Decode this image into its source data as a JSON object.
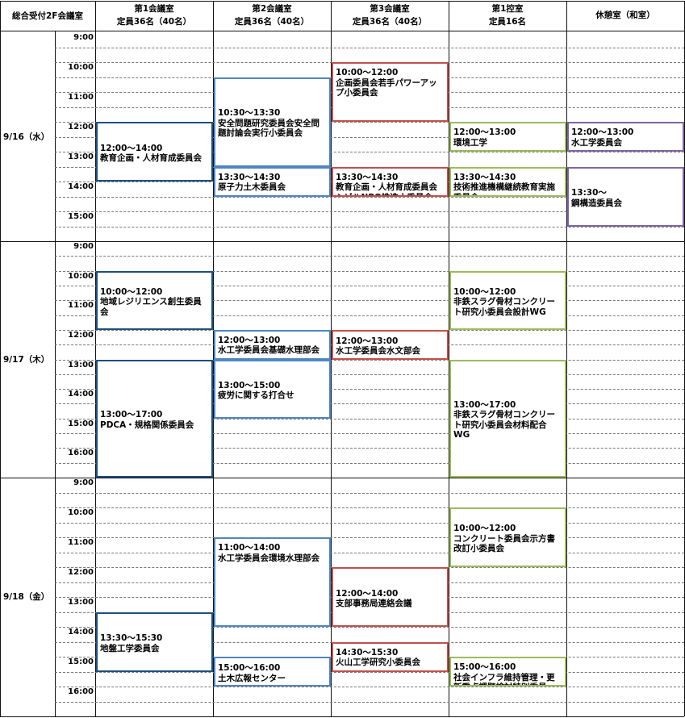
{
  "corner_label": "総合受付2F会議室",
  "rooms": [
    {
      "name": "第1会議室",
      "capacity": "定員36名（40名）"
    },
    {
      "name": "第2会議室",
      "capacity": "定員36名（40名）"
    },
    {
      "name": "第3会議室",
      "capacity": "定員36名（40名）"
    },
    {
      "name": "第1控室",
      "capacity": "定員16名"
    },
    {
      "name": "休憩室（和室）",
      "capacity": ""
    }
  ],
  "days": [
    {
      "label": "9/16（水）",
      "start_hour": 9,
      "hours": [
        "9:00",
        "10:00",
        "11:00",
        "12:00",
        "13:00",
        "14:00",
        "15:00"
      ],
      "events": [
        {
          "room": 0,
          "start": 12,
          "end": 14,
          "time": "12:00〜14:00",
          "title": "教育企画・人材育成委員会",
          "color": "#1f4e7a",
          "align": "center"
        },
        {
          "room": 1,
          "start": 10.5,
          "end": 13.5,
          "time": "10:30〜13:30",
          "title": "安全問題研究委員会安全問題討論会実行小委員会",
          "color": "#4f86c0",
          "align": "center"
        },
        {
          "room": 1,
          "start": 13.5,
          "end": 14.5,
          "time": "13:30〜14:30",
          "title": "原子力土木委員会",
          "color": "#4f86c0",
          "align": "top"
        },
        {
          "room": 2,
          "start": 10,
          "end": 12,
          "time": "10:00〜12:00",
          "title": "企画委員会若手パワーアップ小委員会",
          "color": "#c0504d",
          "align": "top"
        },
        {
          "room": 2,
          "start": 13.5,
          "end": 14.5,
          "time": "13:30〜14:30",
          "title": "教育企画・人材育成委員会シビルNPO推進小委員会",
          "color": "#c0504d",
          "align": "top"
        },
        {
          "room": 3,
          "start": 12,
          "end": 13,
          "time": "12:00〜13:00",
          "title": "環境工学",
          "color": "#9bbb59",
          "align": "top"
        },
        {
          "room": 3,
          "start": 13.5,
          "end": 14.5,
          "time": "13:30〜14:30",
          "title": "技術推進機構継続教育実施委員会",
          "color": "#9bbb59",
          "align": "top"
        },
        {
          "room": 4,
          "start": 12,
          "end": 13,
          "time": "12:00〜13:00",
          "title": "水工学委員会",
          "color": "#8064a2",
          "align": "top"
        },
        {
          "room": 4,
          "start": 13.5,
          "end": 15.5,
          "time": "13:30〜",
          "title": "鋼構造委員会",
          "color": "#8064a2",
          "align": "center"
        }
      ]
    },
    {
      "label": "9/17（木）",
      "start_hour": 9,
      "hours": [
        "9:00",
        "10:00",
        "11:00",
        "12:00",
        "13:00",
        "14:00",
        "15:00",
        "16:00"
      ],
      "events": [
        {
          "room": 0,
          "start": 10,
          "end": 12,
          "time": "10:00〜12:00",
          "title": "地域レジリエンス創生委員会",
          "color": "#1f4e7a",
          "align": "center"
        },
        {
          "room": 0,
          "start": 13,
          "end": 17,
          "time": "13:00〜17:00",
          "title": "PDCA・規格関係委員会",
          "color": "#1f4e7a",
          "align": "center"
        },
        {
          "room": 1,
          "start": 12,
          "end": 13,
          "time": "12:00〜13:00",
          "title": "水工学委員会基礎水理部会",
          "color": "#4f86c0",
          "align": "top"
        },
        {
          "room": 1,
          "start": 13,
          "end": 15,
          "time": "13:00〜15:00",
          "title": "疲労に関する打合せ",
          "color": "#4f86c0",
          "align": "center"
        },
        {
          "room": 2,
          "start": 12,
          "end": 13,
          "time": "12:00〜13:00",
          "title": "水工学委員会水文部会",
          "color": "#c0504d",
          "align": "center"
        },
        {
          "room": 3,
          "start": 10,
          "end": 12,
          "time": "10:00〜12:00",
          "title": "非鉄スラグ骨材コンクリート研究小委員会設計WG",
          "color": "#9bbb59",
          "align": "center"
        },
        {
          "room": 3,
          "start": 13,
          "end": 17,
          "time": "13:00〜17:00",
          "title": "非鉄スラグ骨材コンクリート研究小委員会材料配合WG",
          "color": "#9bbb59",
          "align": "center"
        }
      ]
    },
    {
      "label": "9/18（金）",
      "start_hour": 9,
      "hours": [
        "9:00",
        "10:00",
        "11:00",
        "12:00",
        "13:00",
        "14:00",
        "15:00",
        "16:00"
      ],
      "events": [
        {
          "room": 0,
          "start": 13.5,
          "end": 15.5,
          "time": "13:30〜15:30",
          "title": "地盤工学委員会",
          "color": "#1f4e7a",
          "align": "center"
        },
        {
          "room": 1,
          "start": 11,
          "end": 14,
          "time": "11:00〜14:00",
          "title": "水工学委員会環境水理部会",
          "color": "#4f86c0",
          "align": "top"
        },
        {
          "room": 1,
          "start": 15,
          "end": 16,
          "time": "15:00〜16:00",
          "title": "土木広報センター",
          "color": "#4f86c0",
          "align": "center"
        },
        {
          "room": 2,
          "start": 12,
          "end": 14,
          "time": "12:00〜14:00",
          "title": "支部事務局連絡会議",
          "color": "#c0504d",
          "align": "center"
        },
        {
          "room": 2,
          "start": 14.5,
          "end": 15.5,
          "time": "14:30〜15:30",
          "title": "火山工学研究小委員会",
          "color": "#c0504d",
          "align": "top"
        },
        {
          "room": 3,
          "start": 10,
          "end": 12,
          "time": "10:00〜12:00",
          "title": "コンクリート委員会示方書改訂小委員会",
          "color": "#9bbb59",
          "align": "center"
        },
        {
          "room": 3,
          "start": 15,
          "end": 16,
          "time": "15:00〜16:00",
          "title": "社会インフラ維持管理・更新重点課題検討特別委員",
          "color": "#9bbb59",
          "align": "top"
        }
      ]
    }
  ]
}
